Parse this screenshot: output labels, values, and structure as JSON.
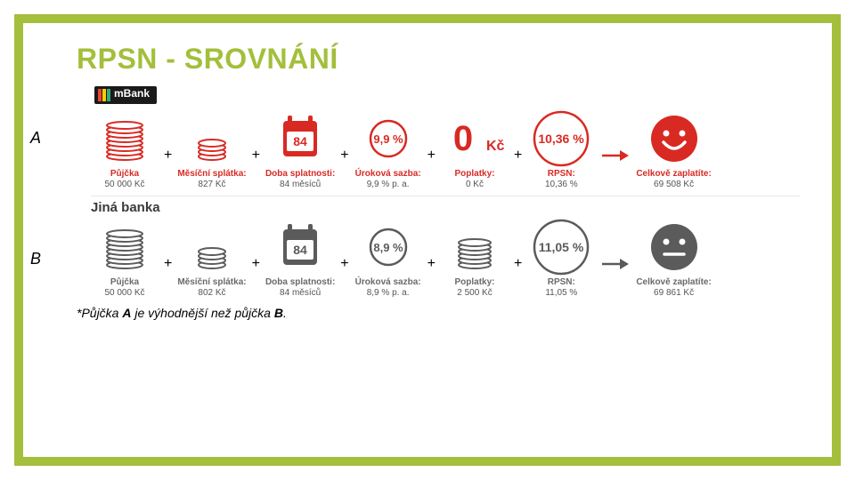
{
  "title": "RPSN - SROVNÁNÍ",
  "footnote_prefix": "*Půjčka ",
  "footnote_a": "A",
  "footnote_mid": " je výhodnější než půjčka ",
  "footnote_b": "B",
  "footnote_suffix": ".",
  "colors": {
    "frame": "#a3bf3b",
    "red": "#d82a23",
    "grey": "#5b5b5b"
  },
  "rows": [
    {
      "label": "A",
      "variant": "red",
      "bank_badge": true,
      "bank_text": "mBank",
      "items": [
        {
          "icon": "coins-big",
          "title": "Půjčka",
          "sub": "50 000 Kč"
        },
        {
          "icon": "coins-small",
          "title": "Měsíční splátka:",
          "sub": "827 Kč"
        },
        {
          "icon": "calendar",
          "badge": "84",
          "title": "Doba splatnosti:",
          "sub": "84 měsíců"
        },
        {
          "icon": "circle-text",
          "text": "9,9 %",
          "title": "Úroková sazba:",
          "sub": "9,9 % p. a."
        },
        {
          "icon": "big-text",
          "text_main": "0",
          "text_unit": "Kč",
          "title": "Poplatky:",
          "sub": "0 Kč"
        },
        {
          "icon": "circle-big",
          "text": "10,36 %",
          "title": "RPSN:",
          "sub": "10,36 %"
        },
        {
          "icon": "face-happy",
          "title": "Celkově zaplatíte:",
          "sub": "69 508 Kč"
        }
      ]
    },
    {
      "label": "B",
      "variant": "grey",
      "other_bank": "Jiná banka",
      "items": [
        {
          "icon": "coins-big",
          "title": "Půjčka",
          "sub": "50 000 Kč"
        },
        {
          "icon": "coins-small",
          "title": "Měsíční splátka:",
          "sub": "802 Kč"
        },
        {
          "icon": "calendar",
          "badge": "84",
          "title": "Doba splatnosti:",
          "sub": "84 měsíců"
        },
        {
          "icon": "circle-text",
          "text": "8,9 %",
          "title": "Úroková sazba:",
          "sub": "8,9 % p. a."
        },
        {
          "icon": "coins-med",
          "title": "Poplatky:",
          "sub": "2 500 Kč"
        },
        {
          "icon": "circle-big",
          "text": "11,05 %",
          "title": "RPSN:",
          "sub": "11,05 %"
        },
        {
          "icon": "face-neutral",
          "title": "Celkově zaplatíte:",
          "sub": "69 861 Kč"
        }
      ]
    }
  ]
}
